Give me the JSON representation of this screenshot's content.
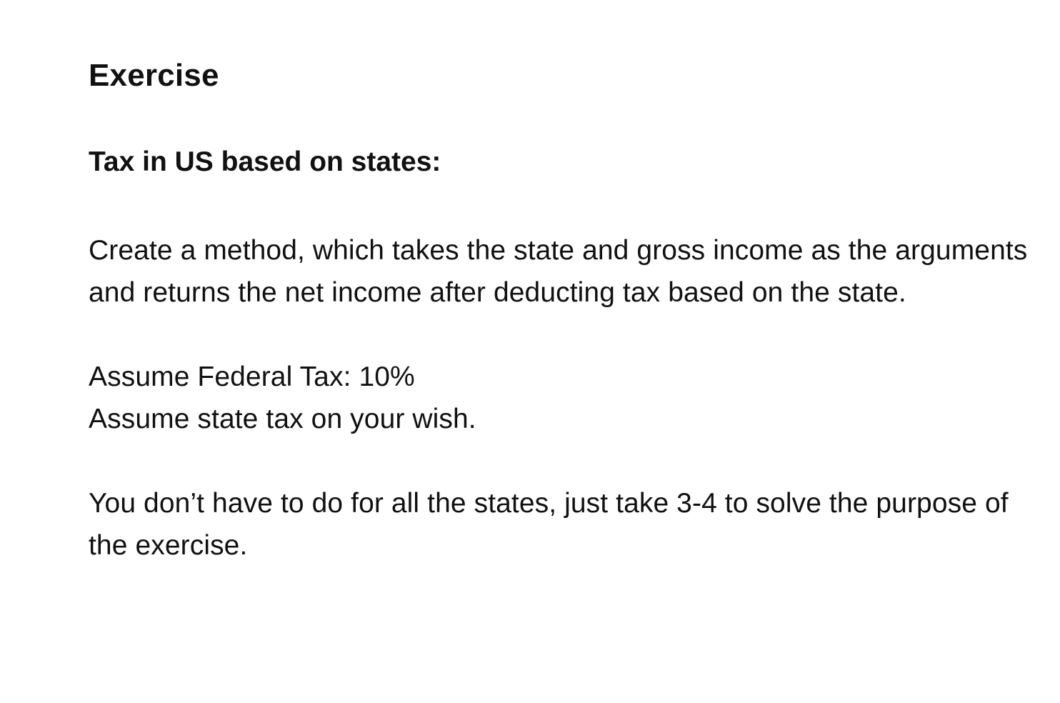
{
  "document": {
    "title": "Exercise",
    "subtitle": "Tax in US based on states:",
    "paragraphs": [
      "Create a method, which takes the state and gross income as the arguments and returns the net income after deducting tax based on the state.",
      "Assume Federal Tax: 10%",
      "Assume state tax on your wish.",
      "You don’t have to do for all the states, just take 3-4 to solve the purpose of the exercise."
    ]
  }
}
